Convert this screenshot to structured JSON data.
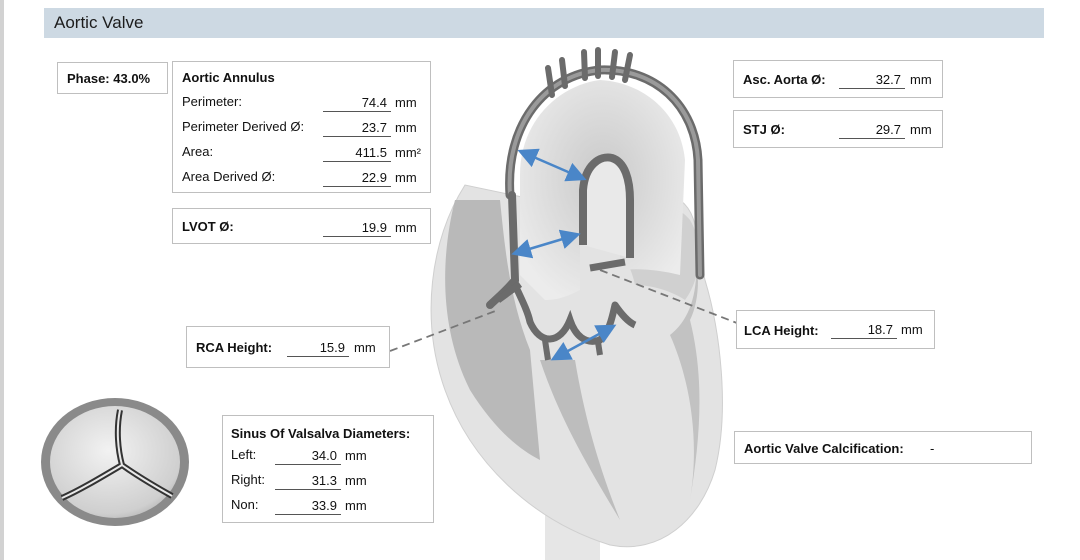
{
  "header": {
    "title": "Aortic Valve"
  },
  "phase": {
    "label": "Phase: 43.0%"
  },
  "annulus": {
    "title": "Aortic Annulus",
    "rows": [
      {
        "label": "Perimeter:",
        "value": "74.4",
        "unit": "mm"
      },
      {
        "label": "Perimeter Derived Ø:",
        "value": "23.7",
        "unit": "mm"
      },
      {
        "label": "Area:",
        "value": "411.5",
        "unit": "mm²"
      },
      {
        "label": "Area Derived Ø:",
        "value": "22.9",
        "unit": "mm"
      }
    ]
  },
  "lvot": {
    "label": "LVOT Ø:",
    "value": "19.9",
    "unit": "mm"
  },
  "rca": {
    "label": "RCA Height:",
    "value": "15.9",
    "unit": "mm"
  },
  "asc_aorta": {
    "label": "Asc. Aorta Ø:",
    "value": "32.7",
    "unit": "mm"
  },
  "stj": {
    "label": "STJ Ø:",
    "value": "29.7",
    "unit": "mm"
  },
  "lca": {
    "label": "LCA Height:",
    "value": "18.7",
    "unit": "mm"
  },
  "sinus": {
    "title": "Sinus Of Valsalva Diameters:",
    "rows": [
      {
        "label": "Left:",
        "value": "34.0",
        "unit": "mm"
      },
      {
        "label": "Right:",
        "value": "31.3",
        "unit": "mm"
      },
      {
        "label": "Non:",
        "value": "33.9",
        "unit": "mm"
      }
    ]
  },
  "calcification": {
    "label": "Aortic Valve Calcification:",
    "value": "-"
  },
  "colors": {
    "header_bg": "#cdd9e3",
    "arrow": "#4a86c8",
    "tissue_gray": "#b8b8b8"
  }
}
